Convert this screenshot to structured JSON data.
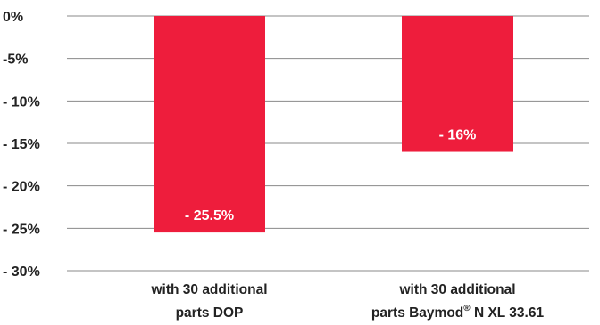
{
  "chart_data": {
    "type": "bar",
    "title": "",
    "xlabel": "",
    "ylabel": "",
    "ylim": [
      -30,
      0
    ],
    "y_ticks": [
      0,
      -5,
      -10,
      -15,
      -20,
      -25,
      -30
    ],
    "y_tick_labels": [
      "0%",
      "-5%",
      "- 10%",
      "- 15%",
      "- 20%",
      "- 25%",
      "- 30%"
    ],
    "grid": true,
    "legend": "none",
    "bar_color": "#ee1d3c",
    "categories": [
      {
        "line1": "with 30 additional",
        "line2": "parts DOP",
        "sup": "",
        "line2_suffix": ""
      },
      {
        "line1": "with 30 additional",
        "line2": "parts Baymod",
        "sup": "®",
        "line2_suffix": " N XL 33.61"
      }
    ],
    "values": [
      -25.5,
      -16
    ],
    "data_labels": [
      "- 25.5%",
      "- 16%"
    ]
  }
}
